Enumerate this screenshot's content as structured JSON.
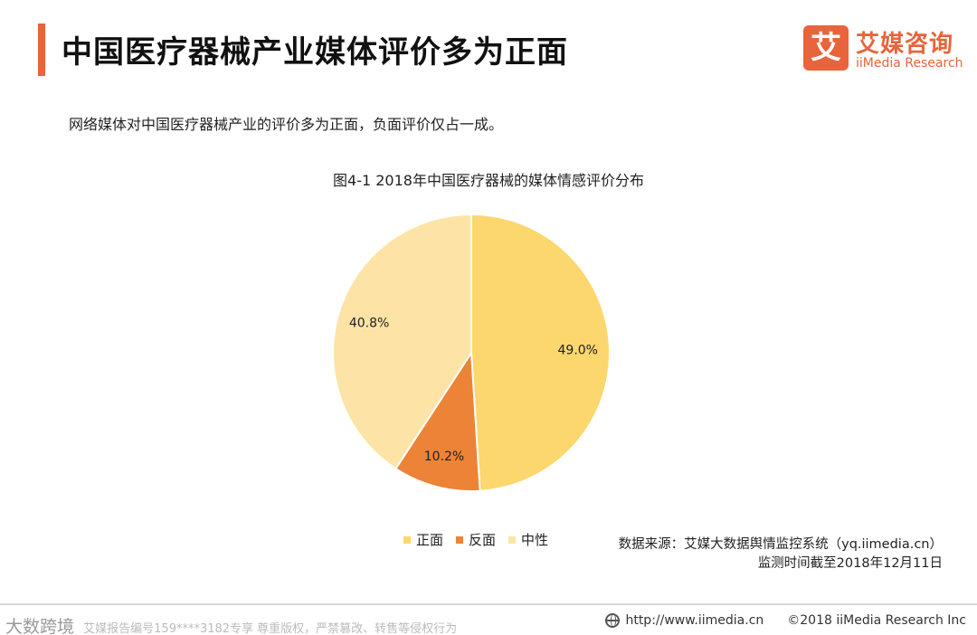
{
  "header": {
    "title": "中国医疗器械产业媒体评价多为正面",
    "subtitle": "网络媒体对中国医疗器械产业的评价多为正面，负面评价仅占一成。"
  },
  "logo": {
    "mark": "艾",
    "name_cn": "艾媒咨询",
    "name_en": "iiMedia Research"
  },
  "chart_data": {
    "type": "pie",
    "title": "图4-1 2018年中国医疗器械的媒体情感评价分布",
    "categories": [
      "正面",
      "反面",
      "中性"
    ],
    "values": [
      49.0,
      10.2,
      40.8
    ],
    "labels": [
      "49.0%",
      "10.2%",
      "40.8%"
    ],
    "colors": [
      "#fcd76e",
      "#ec8336",
      "#fde4a6"
    ],
    "legend_position": "bottom"
  },
  "source": {
    "line1": "数据来源：艾媒大数据舆情监控系统（yq.iimedia.cn）",
    "line2": "监测时间截至2018年12月11日"
  },
  "footer": {
    "watermark": "大数跨境",
    "left_text": "艾媒报告编号159****3182专享 尊重版权，严禁篡改、转售等侵权行为",
    "url": "http://www.iimedia.cn",
    "copyright": "©2018  iiMedia Research  Inc"
  }
}
